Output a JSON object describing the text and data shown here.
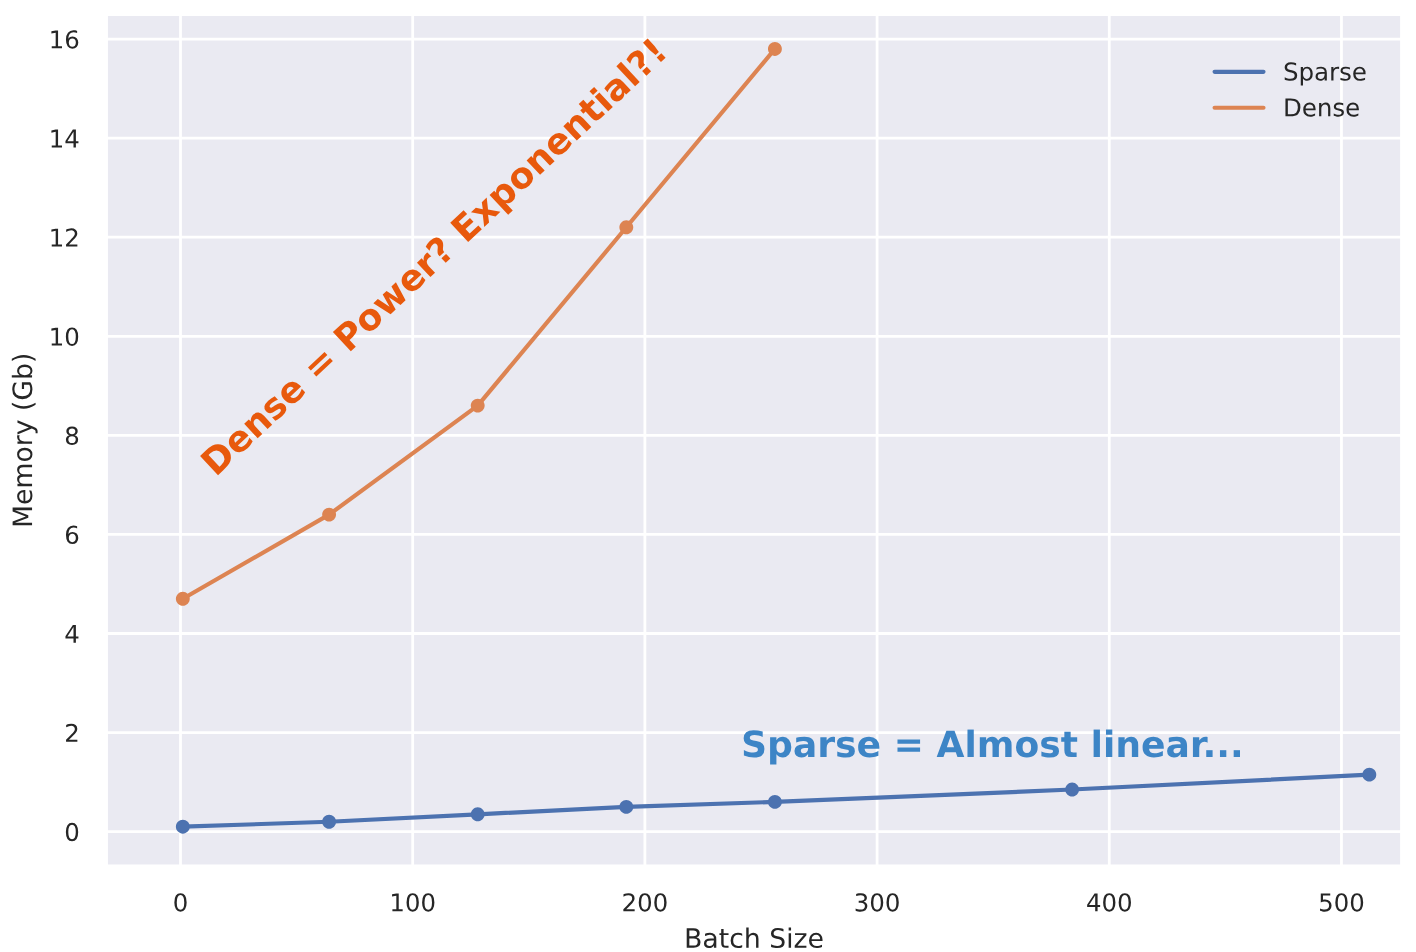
{
  "chart_data": {
    "type": "line",
    "xlabel": "Batch Size",
    "ylabel": "Memory (Gb)",
    "xlim": [
      -32,
      526
    ],
    "ylim": [
      -0.7,
      16.5
    ],
    "xticks": [
      0,
      100,
      200,
      300,
      400,
      500
    ],
    "yticks": [
      0,
      2,
      4,
      6,
      8,
      10,
      12,
      14,
      16
    ],
    "series": [
      {
        "name": "Sparse",
        "color": "#4c72b0",
        "x": [
          1,
          64,
          128,
          192,
          256,
          384,
          512
        ],
        "values": [
          0.1,
          0.2,
          0.35,
          0.5,
          0.6,
          0.85,
          1.15
        ]
      },
      {
        "name": "Dense",
        "color": "#dd8452",
        "x": [
          1,
          64,
          128,
          192,
          256
        ],
        "values": [
          4.7,
          6.4,
          8.6,
          12.2,
          15.8
        ]
      }
    ],
    "annotations": [
      "Dense = Power? Exponential?!",
      "Sparse = Almost linear..."
    ],
    "grid": true,
    "legend": "top right",
    "marker": "circle",
    "line_style": "solid"
  }
}
